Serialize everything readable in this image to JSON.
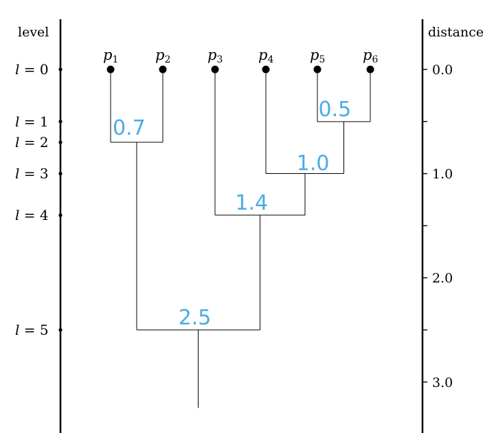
{
  "headers": {
    "level": "level",
    "distance": "distance"
  },
  "leaves": [
    {
      "name": "p",
      "sub": "1"
    },
    {
      "name": "p",
      "sub": "2"
    },
    {
      "name": "p",
      "sub": "3"
    },
    {
      "name": "p",
      "sub": "4"
    },
    {
      "name": "p",
      "sub": "5"
    },
    {
      "name": "p",
      "sub": "6"
    }
  ],
  "levels": [
    {
      "prefix": "l",
      "eq": " = ",
      "value": "0",
      "distance": 0.0
    },
    {
      "prefix": "l",
      "eq": " = ",
      "value": "1",
      "distance": 0.5
    },
    {
      "prefix": "l",
      "eq": " = ",
      "value": "2",
      "distance": 0.7
    },
    {
      "prefix": "l",
      "eq": " = ",
      "value": "3",
      "distance": 1.0
    },
    {
      "prefix": "l",
      "eq": " = ",
      "value": "4",
      "distance": 1.4
    },
    {
      "prefix": "l",
      "eq": " = ",
      "value": "5",
      "distance": 2.5
    }
  ],
  "distance_ticks": [
    {
      "value": 0.0,
      "label": "0.0"
    },
    {
      "value": 0.5,
      "label": ""
    },
    {
      "value": 1.0,
      "label": "1.0"
    },
    {
      "value": 1.5,
      "label": ""
    },
    {
      "value": 2.0,
      "label": "2.0"
    },
    {
      "value": 2.5,
      "label": ""
    },
    {
      "value": 3.0,
      "label": "3.0"
    }
  ],
  "merges": [
    {
      "id": "m56",
      "left": "p5",
      "right": "p6",
      "distance": 0.5,
      "label": "0.5"
    },
    {
      "id": "m12",
      "left": "p1",
      "right": "p2",
      "distance": 0.7,
      "label": "0.7"
    },
    {
      "id": "m456",
      "left": "p4",
      "right": "m56",
      "distance": 1.0,
      "label": "1.0"
    },
    {
      "id": "m3456",
      "left": "p3",
      "right": "m456",
      "distance": 1.4,
      "label": "1.4"
    },
    {
      "id": "root",
      "left": "m12",
      "right": "m3456",
      "distance": 2.5,
      "label": "2.5"
    }
  ],
  "root_stem_distance": 3.25,
  "colors": {
    "merge_label": "#4aabe3",
    "lines": "#000000"
  }
}
